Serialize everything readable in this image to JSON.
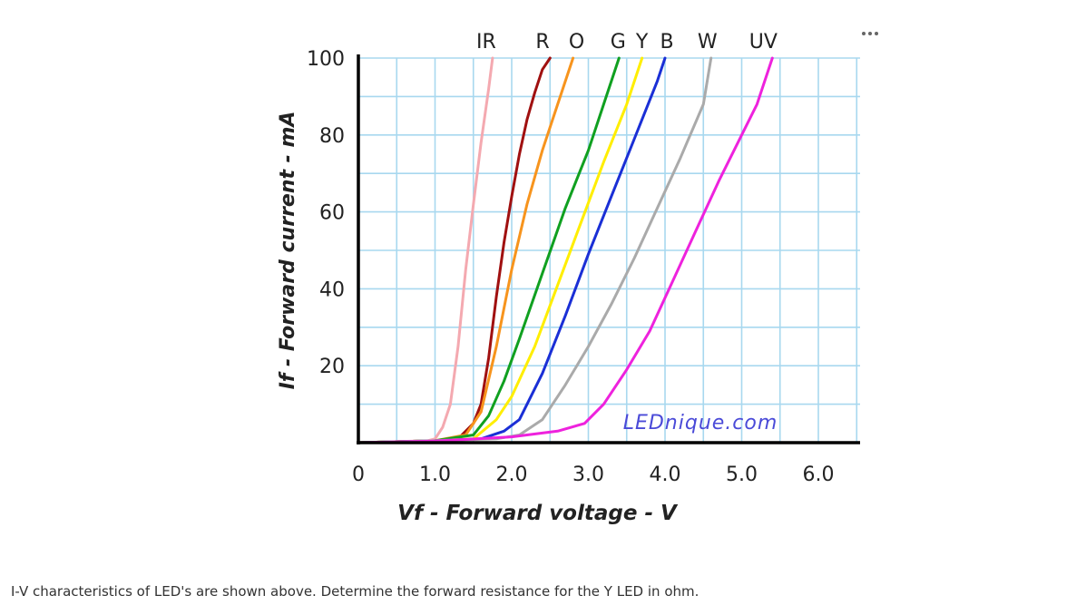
{
  "question": "I-V characteristics of LED's are shown above. Determine the forward resistance for the Y LED in ohm.",
  "menu": {
    "icon": "more-horizontal-icon"
  },
  "watermark": "LEDnique.com",
  "colors": {
    "grid": "#a8d8ef",
    "axis": "#000000",
    "watermark": "#4a4ad8"
  },
  "chart_data": {
    "type": "line",
    "title": "",
    "xlabel": "Vf - Forward voltage - V",
    "ylabel": "If - Forward current - mA",
    "xlim": [
      0,
      6.5
    ],
    "ylim": [
      0,
      100
    ],
    "xticks": [
      {
        "value": 0,
        "label": "0"
      },
      {
        "value": 1,
        "label": "1.0"
      },
      {
        "value": 2,
        "label": "2.0"
      },
      {
        "value": 3,
        "label": "3.0"
      },
      {
        "value": 4,
        "label": "4.0"
      },
      {
        "value": 5,
        "label": "5.0"
      },
      {
        "value": 6,
        "label": "6.0"
      }
    ],
    "yticks": [
      {
        "value": 20,
        "label": "20"
      },
      {
        "value": 40,
        "label": "40"
      },
      {
        "value": 60,
        "label": "60"
      },
      {
        "value": 80,
        "label": "80"
      },
      {
        "value": 100,
        "label": "100"
      }
    ],
    "grid": true,
    "series": [
      {
        "name": "IR",
        "color": "#f4a9b0",
        "label_v": 1.75,
        "points": [
          [
            0,
            0
          ],
          [
            0.9,
            0.5
          ],
          [
            1.0,
            1
          ],
          [
            1.1,
            4
          ],
          [
            1.2,
            10
          ],
          [
            1.3,
            25
          ],
          [
            1.4,
            45
          ],
          [
            1.5,
            62
          ],
          [
            1.6,
            78
          ],
          [
            1.7,
            92
          ],
          [
            1.75,
            100
          ]
        ]
      },
      {
        "name": "R",
        "color": "#a01010",
        "label_v": 2.45,
        "points": [
          [
            0,
            0
          ],
          [
            1.0,
            0.5
          ],
          [
            1.3,
            1
          ],
          [
            1.5,
            5
          ],
          [
            1.6,
            10
          ],
          [
            1.7,
            22
          ],
          [
            1.8,
            38
          ],
          [
            1.9,
            52
          ],
          [
            2.0,
            64
          ],
          [
            2.1,
            75
          ],
          [
            2.2,
            84
          ],
          [
            2.3,
            91
          ],
          [
            2.4,
            97
          ],
          [
            2.5,
            100
          ]
        ]
      },
      {
        "name": "O",
        "color": "#f7941d",
        "label_v": 2.8,
        "points": [
          [
            0,
            0
          ],
          [
            1.0,
            0.5
          ],
          [
            1.4,
            2
          ],
          [
            1.6,
            8
          ],
          [
            1.8,
            25
          ],
          [
            2.0,
            45
          ],
          [
            2.2,
            62
          ],
          [
            2.4,
            76
          ],
          [
            2.6,
            88
          ],
          [
            2.8,
            100
          ]
        ]
      },
      {
        "name": "G",
        "color": "#10a020",
        "label_v": 3.4,
        "points": [
          [
            0,
            0
          ],
          [
            1.0,
            0.5
          ],
          [
            1.5,
            2
          ],
          [
            1.7,
            7
          ],
          [
            1.9,
            16
          ],
          [
            2.1,
            27
          ],
          [
            2.4,
            44
          ],
          [
            2.7,
            61
          ],
          [
            3.0,
            76
          ],
          [
            3.2,
            88
          ],
          [
            3.4,
            100
          ]
        ]
      },
      {
        "name": "Y",
        "color": "#ffee00",
        "label_v": 3.7,
        "points": [
          [
            0,
            0
          ],
          [
            1.0,
            0.5
          ],
          [
            1.5,
            1
          ],
          [
            1.8,
            6
          ],
          [
            2.0,
            12
          ],
          [
            2.3,
            25
          ],
          [
            2.6,
            41
          ],
          [
            2.9,
            57
          ],
          [
            3.2,
            73
          ],
          [
            3.5,
            88
          ],
          [
            3.7,
            100
          ]
        ]
      },
      {
        "name": "B",
        "color": "#1a2fd6",
        "label_v": 4.0,
        "points": [
          [
            0,
            0
          ],
          [
            1.0,
            0.5
          ],
          [
            1.6,
            1
          ],
          [
            1.9,
            3
          ],
          [
            2.1,
            6
          ],
          [
            2.4,
            18
          ],
          [
            2.7,
            33
          ],
          [
            3.0,
            49
          ],
          [
            3.3,
            64
          ],
          [
            3.6,
            79
          ],
          [
            3.9,
            94
          ],
          [
            4.0,
            100
          ]
        ]
      },
      {
        "name": "W",
        "color": "#aaaaaa",
        "label_v": 4.6,
        "points": [
          [
            0,
            0
          ],
          [
            1.0,
            0.5
          ],
          [
            1.8,
            1
          ],
          [
            2.1,
            2
          ],
          [
            2.4,
            6
          ],
          [
            2.7,
            15
          ],
          [
            3.0,
            25
          ],
          [
            3.3,
            36
          ],
          [
            3.6,
            48
          ],
          [
            3.9,
            61
          ],
          [
            4.2,
            74
          ],
          [
            4.5,
            88
          ],
          [
            4.6,
            100
          ]
        ]
      },
      {
        "name": "UV",
        "color": "#ee22dd",
        "label_v": 5.4,
        "points": [
          [
            0,
            0
          ],
          [
            1.0,
            0.4
          ],
          [
            2.0,
            1.5
          ],
          [
            2.6,
            3
          ],
          [
            2.95,
            5
          ],
          [
            3.2,
            10
          ],
          [
            3.5,
            19
          ],
          [
            3.8,
            29
          ],
          [
            4.1,
            42
          ],
          [
            4.4,
            55
          ],
          [
            4.7,
            68
          ],
          [
            5.0,
            80
          ],
          [
            5.2,
            88
          ],
          [
            5.4,
            100
          ]
        ]
      }
    ]
  }
}
